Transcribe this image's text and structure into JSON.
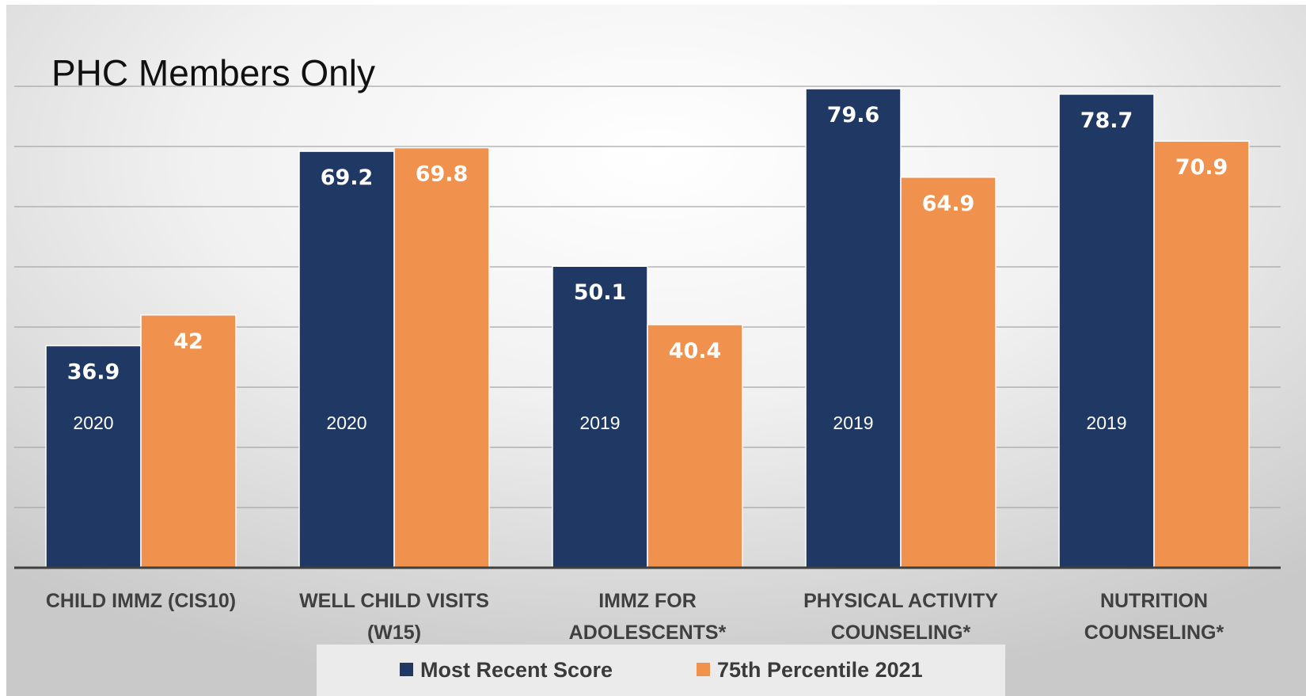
{
  "chart_data": {
    "type": "bar",
    "title": "PHC Members Only",
    "categories": [
      [
        "CHILD IMMZ (CIS10)"
      ],
      [
        "WELL CHILD VISITS",
        "(W15)"
      ],
      [
        "IMMZ FOR",
        "ADOLESCENTS*"
      ],
      [
        "PHYSICAL ACTIVITY",
        "COUNSELING*"
      ],
      [
        "NUTRITION",
        "COUNSELING*"
      ]
    ],
    "series": [
      {
        "name": "Most Recent Score",
        "color": "#1f3864",
        "values": [
          36.9,
          69.2,
          50.1,
          79.6,
          78.7
        ],
        "value_labels": [
          "36.9",
          "69.2",
          "50.1",
          "79.6",
          "78.7"
        ],
        "year_labels": [
          "2020",
          "2020",
          "2019",
          "2019",
          "2019"
        ]
      },
      {
        "name": "75th Percentile 2021",
        "color": "#f0914e",
        "values": [
          42,
          69.8,
          40.4,
          64.9,
          70.9
        ],
        "value_labels": [
          "42",
          "69.8",
          "40.4",
          "64.9",
          "70.9"
        ]
      }
    ],
    "ylim": [
      0,
      80
    ],
    "grid": true,
    "legend_position": "bottom"
  }
}
